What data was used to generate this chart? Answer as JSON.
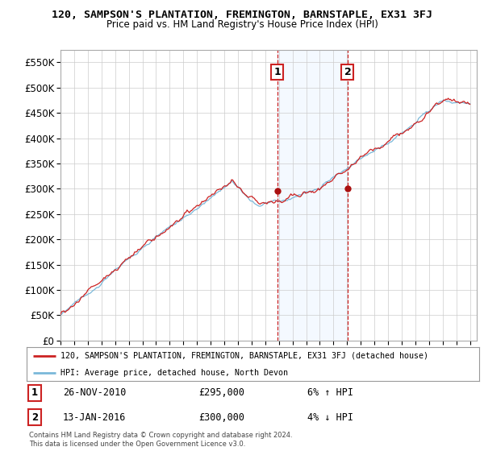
{
  "title": "120, SAMPSON'S PLANTATION, FREMINGTON, BARNSTAPLE, EX31 3FJ",
  "subtitle": "Price paid vs. HM Land Registry's House Price Index (HPI)",
  "legend_line1": "120, SAMPSON'S PLANTATION, FREMINGTON, BARNSTAPLE, EX31 3FJ (detached house)",
  "legend_line2": "HPI: Average price, detached house, North Devon",
  "annotation1_date": "26-NOV-2010",
  "annotation1_price": "£295,000",
  "annotation1_hpi": "6% ↑ HPI",
  "annotation2_date": "13-JAN-2016",
  "annotation2_price": "£300,000",
  "annotation2_hpi": "4% ↓ HPI",
  "footer": "Contains HM Land Registry data © Crown copyright and database right 2024.\nThis data is licensed under the Open Government Licence v3.0.",
  "hpi_color": "#7ab8d9",
  "price_color": "#cc2222",
  "marker_color": "#aa1111",
  "shaded_color": "#ddeeff",
  "dashed_color": "#cc2222",
  "ylim": [
    0,
    575000
  ],
  "yticks": [
    0,
    50000,
    100000,
    150000,
    200000,
    250000,
    300000,
    350000,
    400000,
    450000,
    500000,
    550000
  ],
  "xlim_start": 1995,
  "xlim_end": 2025.5,
  "sale1_year": 2010.88,
  "sale1_price": 295000,
  "sale2_year": 2016.04,
  "sale2_price": 300000,
  "background_color": "#ffffff",
  "grid_color": "#cccccc"
}
